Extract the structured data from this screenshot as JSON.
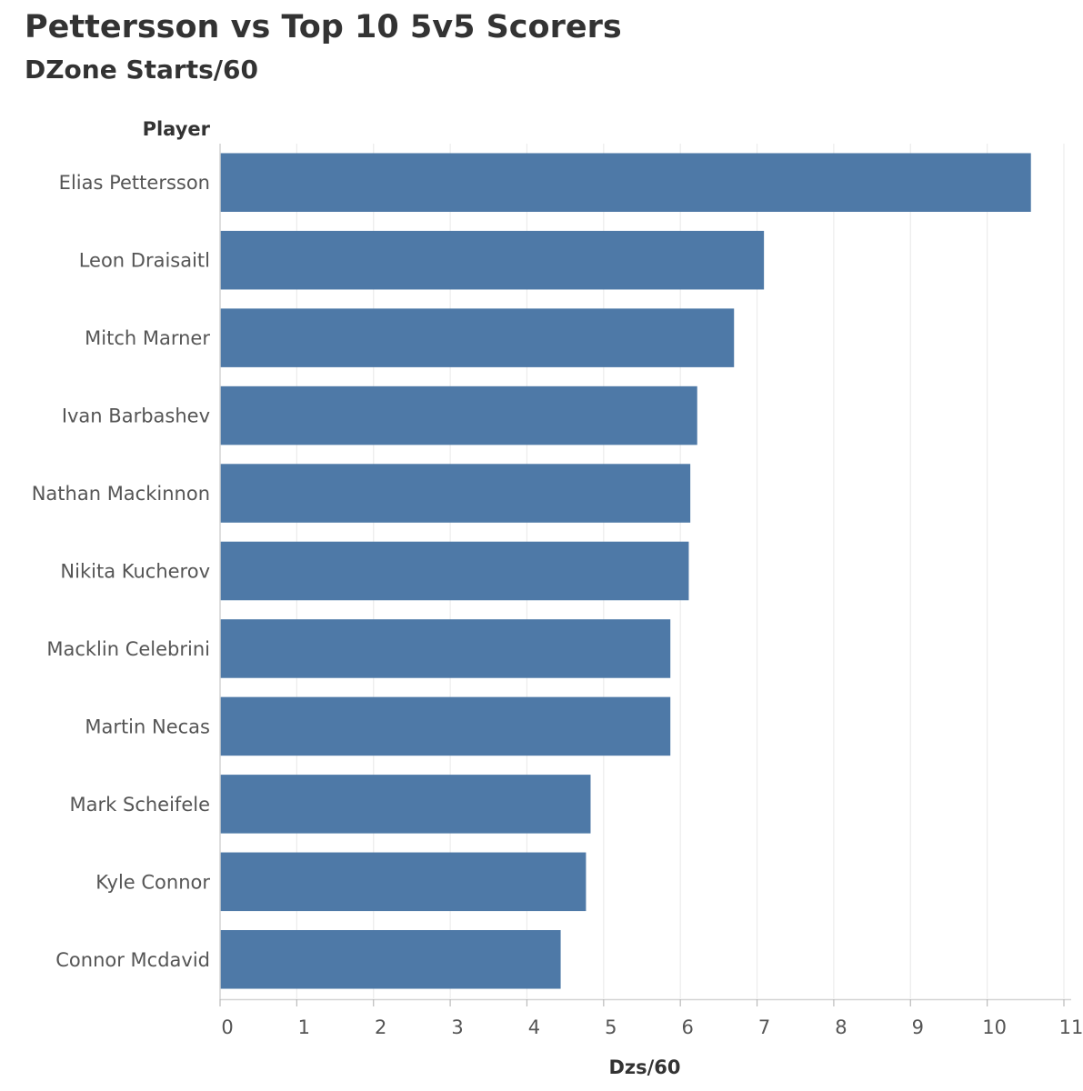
{
  "chart_data": {
    "type": "bar",
    "orientation": "horizontal",
    "title": "Pettersson vs Top 10 5v5 Scorers",
    "subtitle": "DZone Starts/60",
    "category_header": "Player",
    "xlabel": "Dzs/60",
    "categories": [
      "Elias Pettersson",
      "Leon Draisaitl",
      "Mitch Marner",
      "Ivan Barbashev",
      "Nathan Mackinnon",
      "Nikita Kucherov",
      "Macklin Celebrini",
      "Martin Necas",
      "Mark Scheifele",
      "Kyle Connor",
      "Connor Mcdavid"
    ],
    "values": [
      10.57,
      7.09,
      6.7,
      6.22,
      6.13,
      6.11,
      5.87,
      5.87,
      4.83,
      4.77,
      4.44
    ],
    "xlim": [
      0,
      11
    ],
    "xticks": [
      "0",
      "1",
      "2",
      "3",
      "4",
      "5",
      "6",
      "7",
      "8",
      "9",
      "10",
      "11"
    ],
    "grid": "vertical",
    "bar_color": "#4e79a7"
  }
}
